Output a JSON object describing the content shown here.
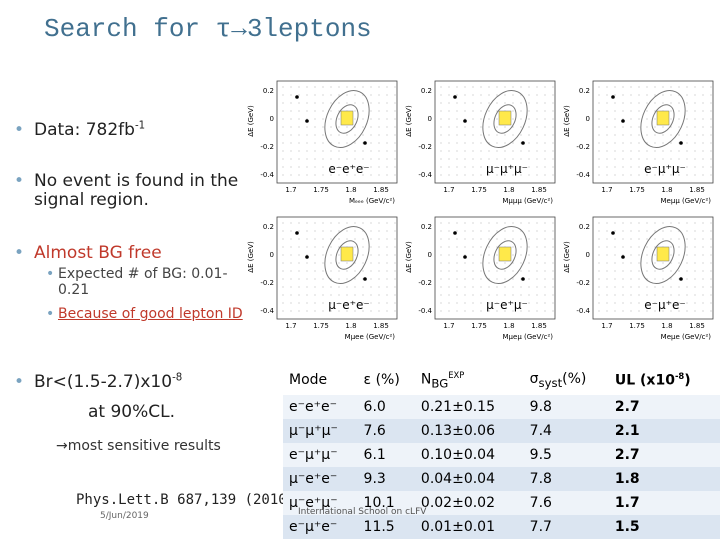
{
  "title": "Search for τ→3leptons",
  "bullets": {
    "data": {
      "text": "Data: 782fb",
      "sup": "-1"
    },
    "no_event": "No event is found in the signal region.",
    "bg_free": "Almost BG free",
    "sub": [
      "Expected # of BG: 0.01-0.21",
      "Because of good lepton ID"
    ],
    "br": {
      "text": "Br<(1.5-2.7)x10",
      "sup": "-8",
      "cl": "at 90%CL."
    },
    "sensitive": "→most sensitive results",
    "ref": "Phys.Lett.B 687,139 (2010)"
  },
  "panels": [
    {
      "label": "e⁻e⁺e⁻",
      "y_label": "ΔE (GeV)",
      "x_label": "Mₑₑₑ (GeV/c²)",
      "y_ticks": [
        "0.2",
        "0",
        "-0.2",
        "-0.4"
      ],
      "x_ticks": [
        "1.7",
        "1.75",
        "1.8",
        "1.85"
      ]
    },
    {
      "label": "μ⁻μ⁺μ⁻",
      "y_label": "ΔE (GeV)",
      "x_label": "Mμμμ (GeV/c²)",
      "y_ticks": [
        "0.2",
        "0",
        "-0.2",
        "-0.4"
      ],
      "x_ticks": [
        "1.7",
        "1.75",
        "1.8",
        "1.85"
      ]
    },
    {
      "label": "e⁻μ⁺μ⁻",
      "y_label": "ΔE (GeV)",
      "x_label": "Meμμ (GeV/c²)",
      "y_ticks": [
        "0.2",
        "0",
        "-0.2",
        "-0.4"
      ],
      "x_ticks": [
        "1.7",
        "1.75",
        "1.8",
        "1.85"
      ]
    },
    {
      "label": "μ⁻e⁺e⁻",
      "y_label": "ΔE (GeV)",
      "x_label": "Mμee (GeV/c²)",
      "y_ticks": [
        "0.2",
        "0",
        "-0.2",
        "-0.4"
      ],
      "x_ticks": [
        "1.7",
        "1.75",
        "1.8",
        "1.85"
      ]
    },
    {
      "label": "μ⁻e⁺μ⁻",
      "y_label": "ΔE (GeV)",
      "x_label": "Mμeμ (GeV/c²)",
      "y_ticks": [
        "0.2",
        "0",
        "-0.2",
        "-0.4"
      ],
      "x_ticks": [
        "1.7",
        "1.75",
        "1.8",
        "1.85"
      ]
    },
    {
      "label": "e⁻μ⁺e⁻",
      "y_label": "ΔE (GeV)",
      "x_label": "Meμe (GeV/c²)",
      "y_ticks": [
        "0.2",
        "0",
        "-0.2",
        "-0.4"
      ],
      "x_ticks": [
        "1.7",
        "1.75",
        "1.8",
        "1.85"
      ]
    }
  ],
  "table": {
    "header": [
      {
        "main": "Mode"
      },
      {
        "main": "ε (%)"
      },
      {
        "main": "N",
        "sub": "BG",
        "sup": "EXP"
      },
      {
        "main": "σ",
        "sub": "syst",
        "tail": "(%)"
      },
      {
        "main": "UL (x10",
        "sup": "-8",
        "tail": ")"
      }
    ],
    "rows": [
      [
        "e⁻e⁺e⁻",
        "6.0",
        "0.21±0.15",
        "9.8",
        "2.7"
      ],
      [
        "μ⁻μ⁺μ⁻",
        "7.6",
        "0.13±0.06",
        "7.4",
        "2.1"
      ],
      [
        "e⁻μ⁺μ⁻",
        "6.1",
        "0.10±0.04",
        "9.5",
        "2.7"
      ],
      [
        "μ⁻e⁺e⁻",
        "9.3",
        "0.04±0.04",
        "7.8",
        "1.8"
      ],
      [
        "μ⁻e⁺μ⁻",
        "10.1",
        "0.02±0.02",
        "7.6",
        "1.7"
      ],
      [
        "e⁻μ⁺e⁻",
        "11.5",
        "0.01±0.01",
        "7.7",
        "1.5"
      ]
    ]
  },
  "footer": {
    "date": "5/Jun/2019",
    "event": "International School on cLFV"
  }
}
